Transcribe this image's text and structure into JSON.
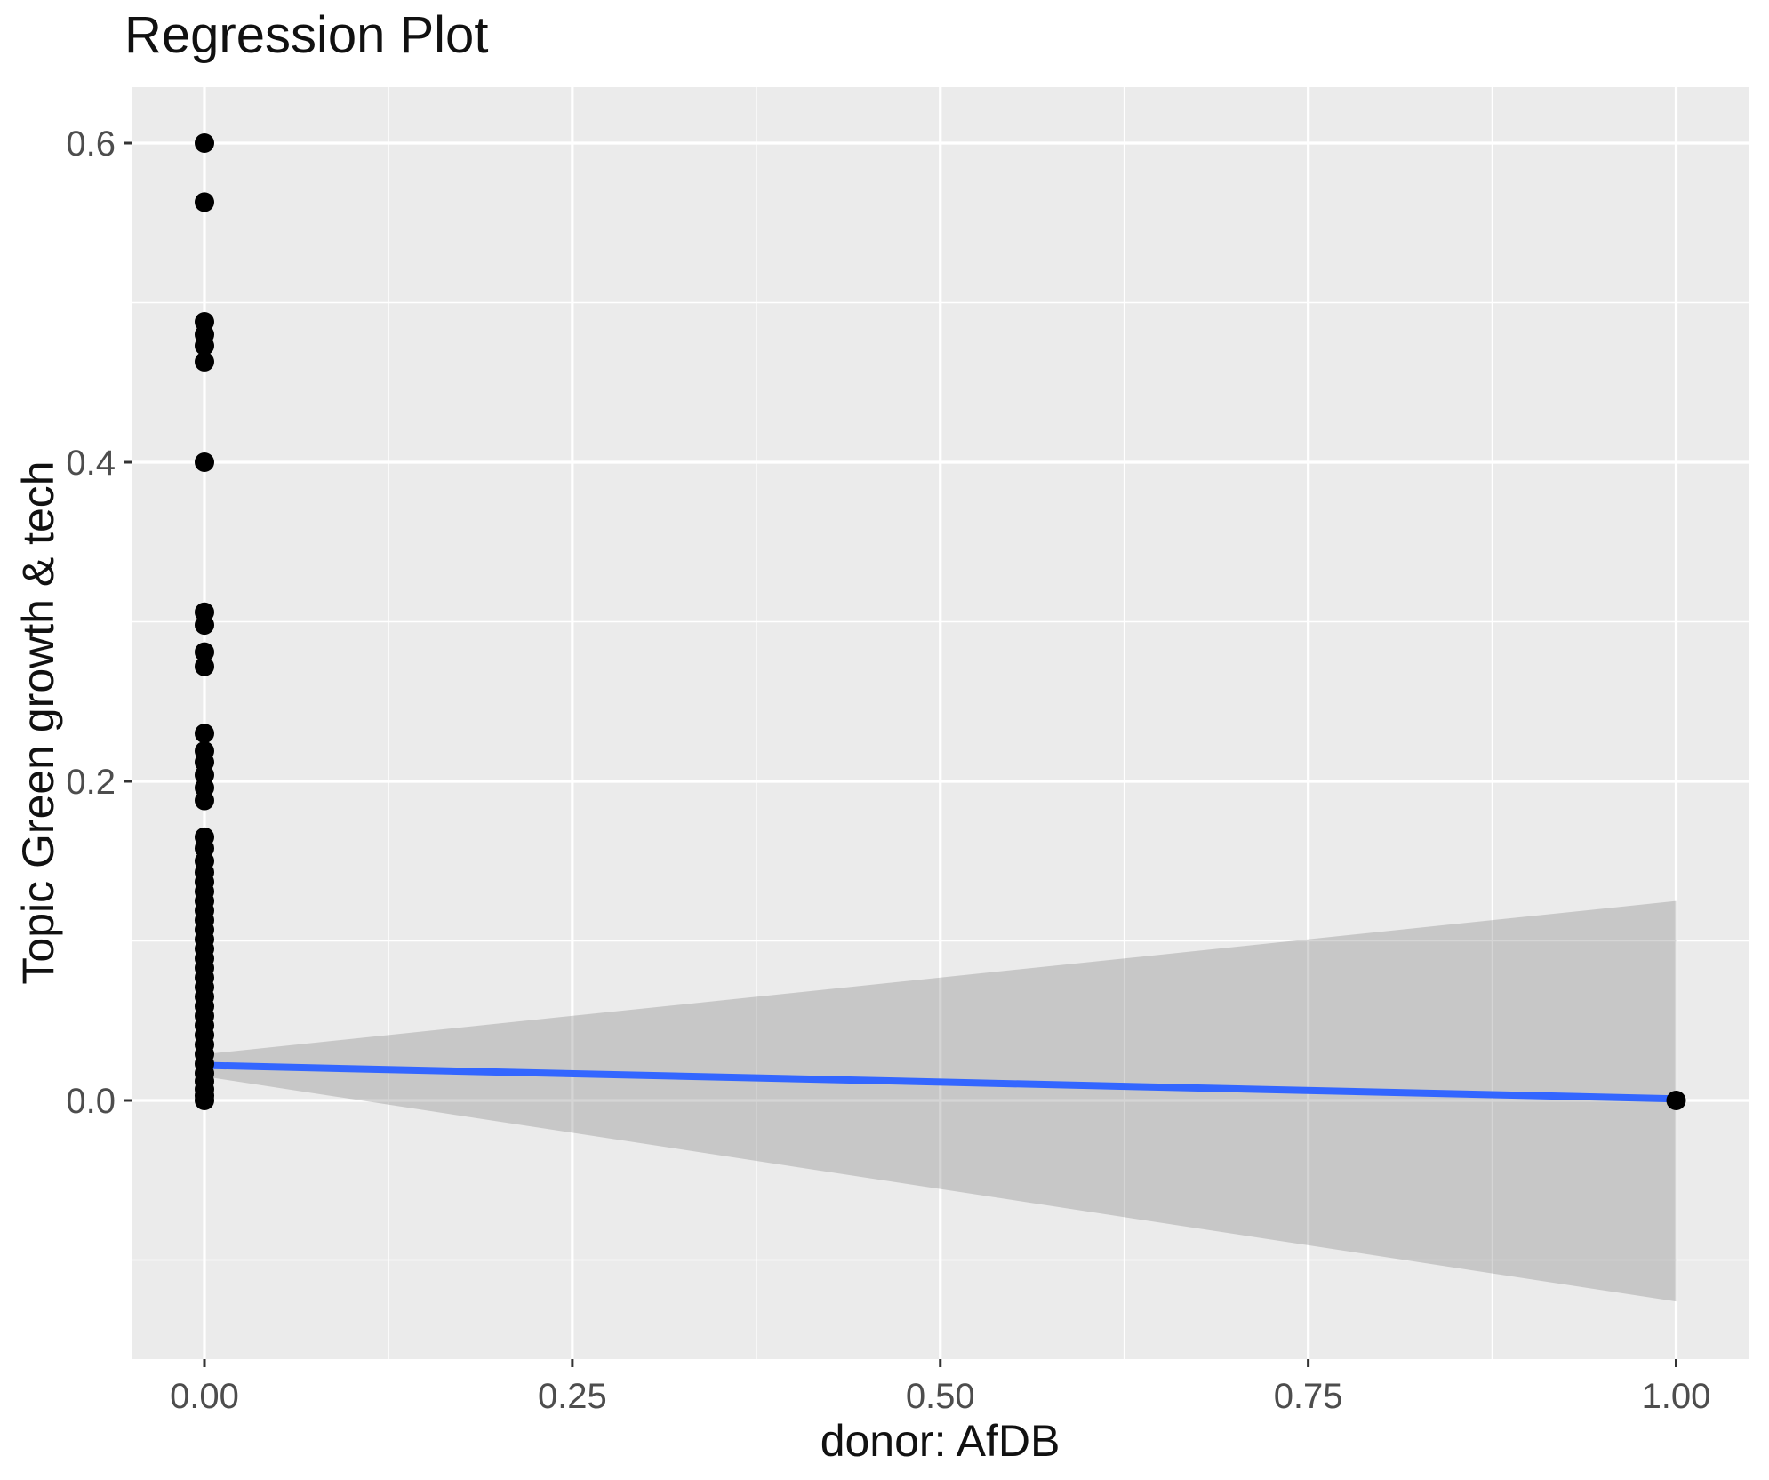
{
  "chart_data": {
    "type": "scatter",
    "title": "Regression Plot",
    "xlabel": "donor: AfDB",
    "ylabel": "Topic Green growth & tech",
    "legend": "none",
    "grid": "on",
    "xlim": [
      -0.05,
      1.05
    ],
    "ylim": [
      -0.162,
      0.635
    ],
    "x_ticks": [
      {
        "value": 0.0,
        "label": "0.00"
      },
      {
        "value": 0.25,
        "label": "0.25"
      },
      {
        "value": 0.5,
        "label": "0.50"
      },
      {
        "value": 0.75,
        "label": "0.75"
      },
      {
        "value": 1.0,
        "label": "1.00"
      }
    ],
    "y_ticks": [
      {
        "value": 0.0,
        "label": "0.0"
      },
      {
        "value": 0.2,
        "label": "0.2"
      },
      {
        "value": 0.4,
        "label": "0.4"
      },
      {
        "value": 0.6,
        "label": "0.6"
      }
    ],
    "x_minor_gridlines": [
      0.125,
      0.375,
      0.625,
      0.875
    ],
    "y_minor_gridlines": [
      -0.1,
      0.1,
      0.3,
      0.5
    ],
    "points": [
      [
        0,
        0.6
      ],
      [
        0,
        0.563
      ],
      [
        0,
        0.488
      ],
      [
        0,
        0.48
      ],
      [
        0,
        0.473
      ],
      [
        0,
        0.463
      ],
      [
        0,
        0.4
      ],
      [
        0,
        0.306
      ],
      [
        0,
        0.298
      ],
      [
        0,
        0.281
      ],
      [
        0,
        0.272
      ],
      [
        0,
        0.23
      ],
      [
        0,
        0.219
      ],
      [
        0,
        0.212
      ],
      [
        0,
        0.204
      ],
      [
        0,
        0.196
      ],
      [
        0,
        0.188
      ],
      [
        0,
        0.165
      ],
      [
        0,
        0.158
      ],
      [
        0,
        0.15
      ],
      [
        0,
        0.143
      ],
      [
        0,
        0.137
      ],
      [
        0,
        0.131
      ],
      [
        0,
        0.125
      ],
      [
        0,
        0.119
      ],
      [
        0,
        0.113
      ],
      [
        0,
        0.107
      ],
      [
        0,
        0.101
      ],
      [
        0,
        0.095
      ],
      [
        0,
        0.089
      ],
      [
        0,
        0.083
      ],
      [
        0,
        0.077
      ],
      [
        0,
        0.071
      ],
      [
        0,
        0.065
      ],
      [
        0,
        0.059
      ],
      [
        0,
        0.053
      ],
      [
        0,
        0.047
      ],
      [
        0,
        0.041
      ],
      [
        0,
        0.035
      ],
      [
        0,
        0.029
      ],
      [
        0,
        0.023
      ],
      [
        0,
        0.017
      ],
      [
        0,
        0.012
      ],
      [
        0,
        0.007
      ],
      [
        0,
        0.003
      ],
      [
        0,
        0.0
      ],
      [
        1,
        0.0
      ]
    ],
    "regression_line": {
      "x": [
        0,
        1
      ],
      "y": [
        0.022,
        0.001
      ],
      "color": "#3366FF",
      "width": 8
    },
    "confidence_band": {
      "x": [
        0,
        1
      ],
      "upper": [
        0.029,
        0.125
      ],
      "lower": [
        0.015,
        -0.126
      ],
      "fill": "#7F7F7F",
      "opacity": 0.33
    },
    "colors": {
      "panel_background": "#EBEBEB",
      "gridline": "#FFFFFF",
      "point": "#000000",
      "tick_mark": "#333333",
      "tick_label": "#4D4D4D",
      "title_text": "#111111"
    },
    "point_radius": 11
  }
}
